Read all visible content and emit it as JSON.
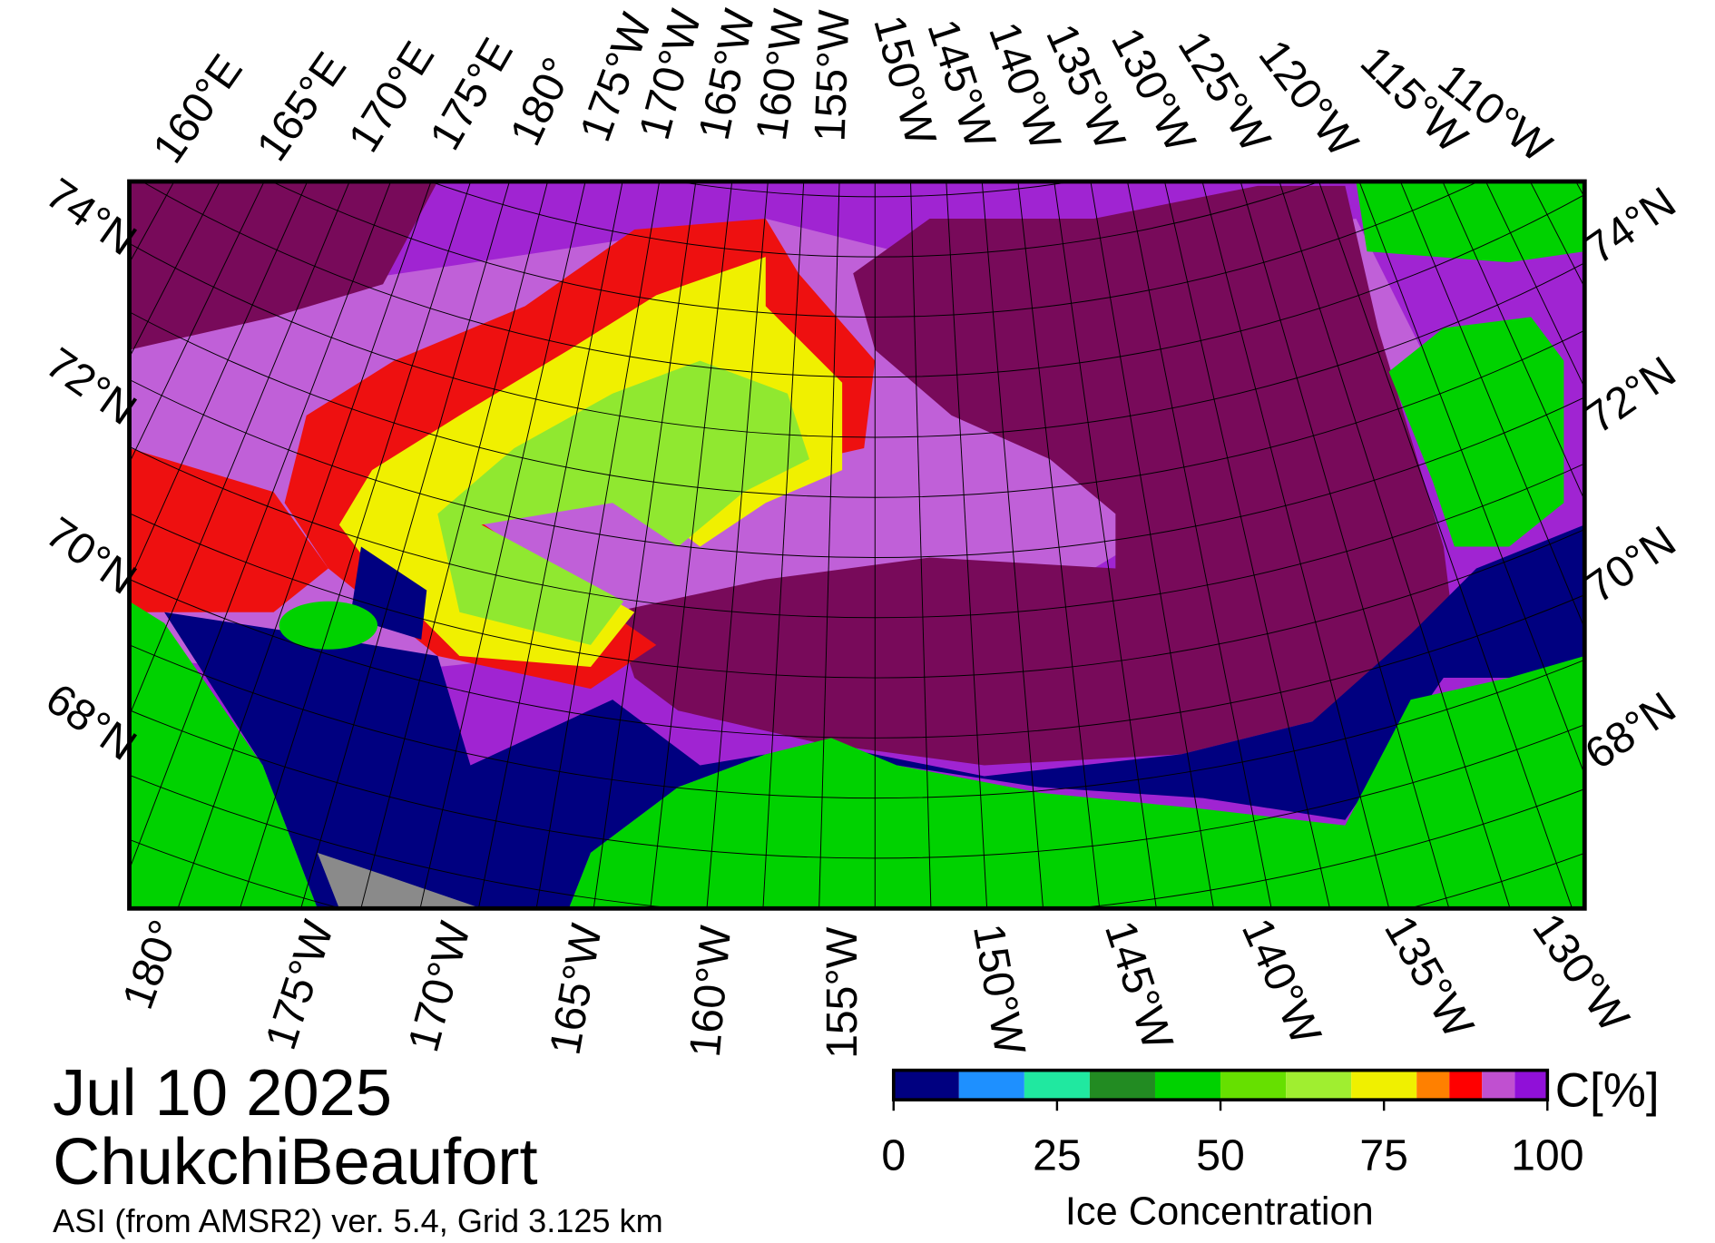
{
  "map": {
    "date": "Jul 10 2025",
    "region": "ChukchiBeaufort",
    "source": "ASI (from AMSR2) ver. 5.4,  Grid 3.125 km",
    "top_lon_labels": [
      "160°E",
      "165°E",
      "170°E",
      "175°E",
      "180°",
      "175°W",
      "170°W",
      "165°W",
      "160°W",
      "155°W",
      "150°W",
      "145°W",
      "140°W",
      "135°W",
      "130°W",
      "125°W",
      "120°W",
      "115°W",
      "110°W"
    ],
    "bottom_lon_labels": [
      "180°",
      "175°W",
      "170°W",
      "165°W",
      "160°W",
      "155°W",
      "150°W",
      "145°W",
      "140°W",
      "135°W",
      "130°W"
    ],
    "left_lat_labels": [
      "74°N",
      "72°N",
      "70°N",
      "68°N"
    ],
    "right_lat_labels": [
      "74°N",
      "72°N",
      "70°N",
      "68°N"
    ],
    "colorbar": {
      "title": "Ice Concentration",
      "unit": "C[%]",
      "lim": [
        0,
        100
      ],
      "ticks": [
        0,
        25,
        50,
        75,
        100
      ],
      "bins": [
        0,
        10,
        20,
        30,
        40,
        50,
        60,
        70,
        80,
        85,
        90,
        95,
        100
      ],
      "colors": [
        "#000080",
        "#1e90ff",
        "#20e8a0",
        "#228b22",
        "#00d200",
        "#66e000",
        "#a0ee30",
        "#f0f000",
        "#ff8000",
        "#ff0000",
        "#c050d0",
        "#9010d8"
      ]
    }
  }
}
